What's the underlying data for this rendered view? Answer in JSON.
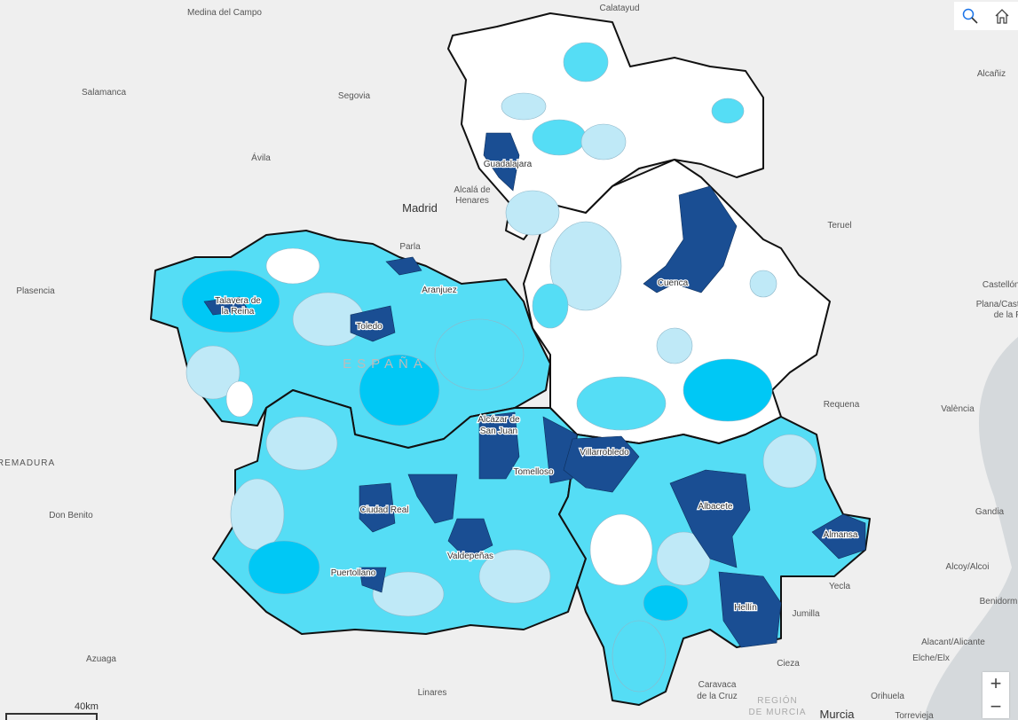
{
  "map": {
    "background_places": [
      "Medina del Campo",
      "Calatayud",
      "Alcañiz",
      "Salamanca",
      "Segovia",
      "Ávila",
      "Madrid",
      "Alcalá de",
      "Henares",
      "Parla",
      "Teruel",
      "Plasencia",
      "Castellón de la",
      "Plana/Castelló",
      "de la P.",
      "Requena",
      "València",
      "Don Benito",
      "Gandia",
      "TREMADURA",
      "Alcoy/Alcoi",
      "Yecla",
      "Benidorm",
      "Jumilla",
      "Alacant/Alicante",
      "Elche/Elx",
      "Cieza",
      "Azuaga",
      "Linares",
      "Caravaca",
      "de la Cruz",
      "REGIÓN",
      "DE MURCIA",
      "Murcia",
      "Orihuela",
      "Torrevieja"
    ],
    "country_label": "ESPAÑA",
    "cities": [
      "Guadalajara",
      "Cuenca",
      "Talavera de",
      "la Reina",
      "Toledo",
      "Aranjuez",
      "Alcázar de",
      "San Juan",
      "Villarrobledo",
      "Tomelloso",
      "Ciudad Real",
      "Albacete",
      "Almansa",
      "Valdepeñas",
      "Puertollano",
      "Hellín"
    ],
    "colors": {
      "none": "#ffffff",
      "low": "#bfe9f7",
      "mid": "#55ddf5",
      "high": "#00c8f5",
      "top": "#1a4e93",
      "border": "#111111",
      "background": "#efefef"
    }
  },
  "controls": {
    "search_icon": "search-icon",
    "home_icon": "home-icon",
    "zoom_in": "+",
    "zoom_out": "−"
  },
  "scale_bar": {
    "label": "40km"
  }
}
